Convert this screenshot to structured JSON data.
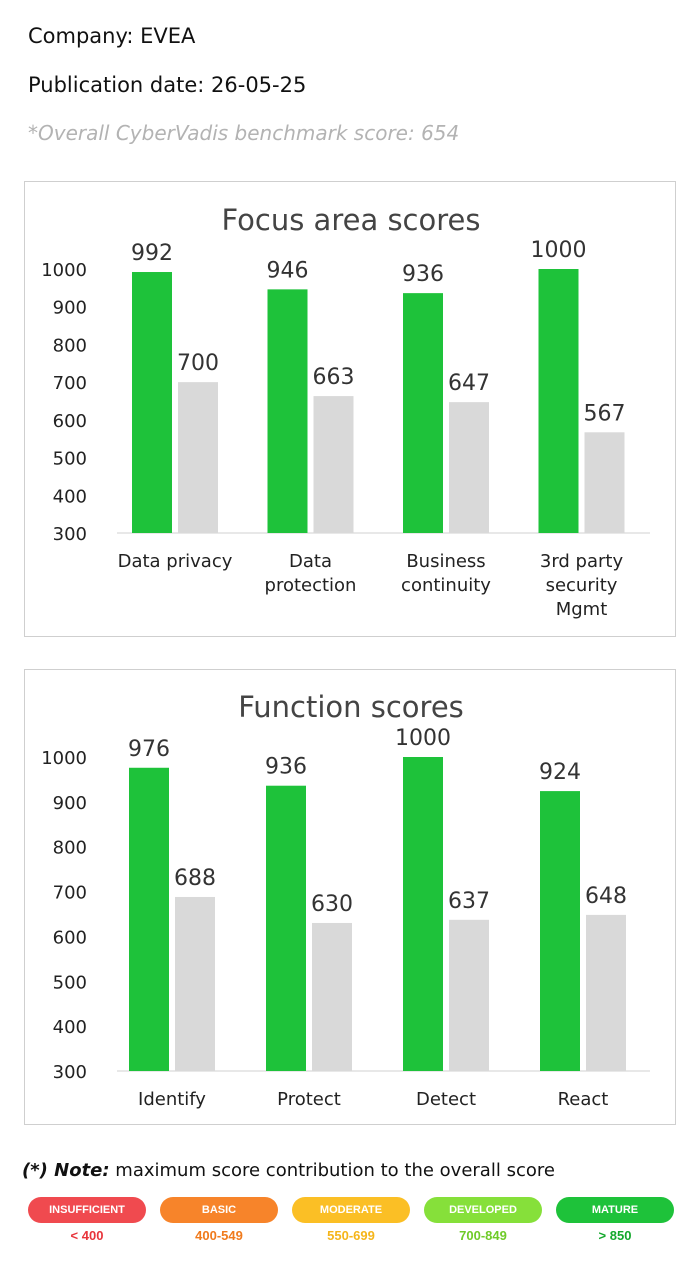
{
  "header": {
    "company": "Company: EVEA",
    "publication_date": "Publication date: 26-05-25",
    "benchmark": "*Overall CyberVadis benchmark score: 654"
  },
  "colors": {
    "green": "#1ec23a",
    "grey": "#d9d9d9"
  },
  "chart_data": [
    {
      "type": "bar",
      "title": "Focus area scores",
      "categories": [
        [
          "Data privacy"
        ],
        [
          "Data",
          "protection"
        ],
        [
          "Business",
          "continuity"
        ],
        [
          "3rd party",
          "security",
          "Mgmt"
        ]
      ],
      "series": [
        {
          "values": [
            992,
            946,
            936,
            1000
          ],
          "color": "#1ec23a"
        },
        {
          "values": [
            700,
            663,
            647,
            567
          ],
          "color": "#d9d9d9"
        }
      ],
      "yticks": [
        "1000",
        "900",
        "800",
        "700",
        "600",
        "500",
        "400",
        "300"
      ],
      "ylim": [
        300,
        1000
      ],
      "grid": false
    },
    {
      "type": "bar",
      "title": "Function scores",
      "categories": [
        [
          "Identify"
        ],
        [
          "Protect"
        ],
        [
          "Detect"
        ],
        [
          "React"
        ]
      ],
      "series": [
        {
          "values": [
            976,
            936,
            1000,
            924
          ],
          "color": "#1ec23a"
        },
        {
          "values": [
            688,
            630,
            637,
            648
          ],
          "color": "#d9d9d9"
        }
      ],
      "yticks": [
        "1000",
        "900",
        "800",
        "700",
        "600",
        "500",
        "400",
        "300"
      ],
      "ylim": [
        300,
        1000
      ],
      "grid": false
    }
  ],
  "note": {
    "label": "(*) Note:",
    "text": " maximum score contribution to the overall score"
  },
  "legend": [
    {
      "label": "INSUFFICIENT",
      "range": "< 400",
      "color": "#f04a4f",
      "text_color": "#e8343b"
    },
    {
      "label": "BASIC",
      "range": "400-549",
      "color": "#f7842a",
      "text_color": "#f07a1c"
    },
    {
      "label": "MODERATE",
      "range": "550-699",
      "color": "#fbbf25",
      "text_color": "#f5b51a"
    },
    {
      "label": "DEVELOPED",
      "range": "700-849",
      "color": "#86e03a",
      "text_color": "#6fcb28"
    },
    {
      "label": "MATURE",
      "range": "> 850",
      "color": "#1ec23a",
      "text_color": "#13a82c"
    }
  ]
}
